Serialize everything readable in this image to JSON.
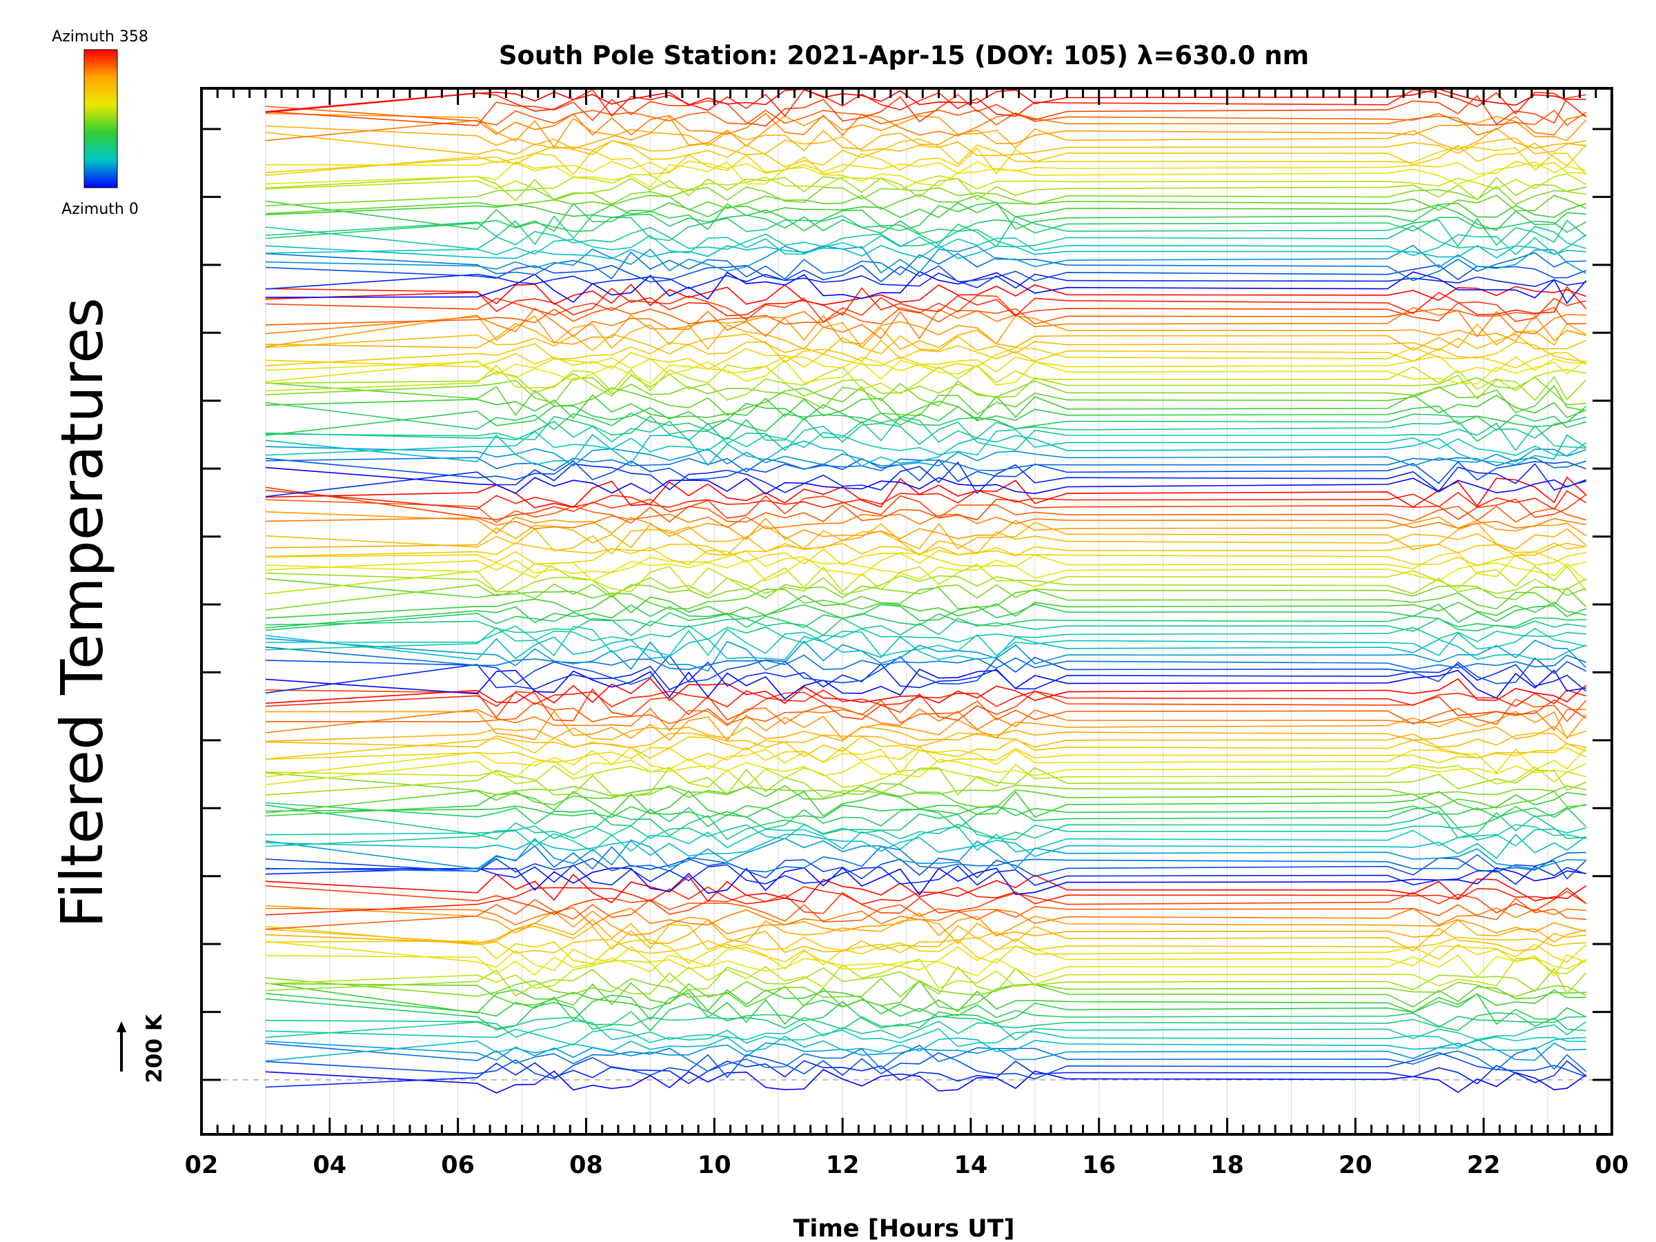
{
  "chart_data": {
    "type": "line",
    "title": "South Pole Station: 2021-Apr-15 (DOY: 105) λ=630.0 nm",
    "xlabel": "Time [Hours UT]",
    "ylabel": "Filtered Temperatures",
    "xlim": [
      2,
      24
    ],
    "xticks": [
      "02",
      "04",
      "06",
      "08",
      "10",
      "12",
      "14",
      "16",
      "18",
      "20",
      "22",
      "00"
    ],
    "gridlines_hours": [
      3,
      4,
      5,
      6,
      7,
      8,
      9,
      10,
      11,
      12,
      13,
      14,
      15,
      16,
      17,
      18,
      19,
      20,
      21,
      22,
      23
    ],
    "y_major_ticks": 15,
    "scale_bar": {
      "label": "200 K",
      "kelvin": 200
    },
    "colorbar": {
      "top_label": "Azimuth 358",
      "bottom_label": "Azimuth 0",
      "colors": [
        "#ff0000",
        "#ffa500",
        "#e8e800",
        "#32cd32",
        "#00c8c8",
        "#0000ff"
      ]
    },
    "series_count": 140,
    "azimuth_range": [
      0,
      358
    ],
    "time_span_hours": [
      3.0,
      23.6
    ],
    "active_period_hours": [
      [
        6.3,
        15.5
      ],
      [
        20.5,
        23.6
      ]
    ],
    "baseline_dashed": true
  }
}
